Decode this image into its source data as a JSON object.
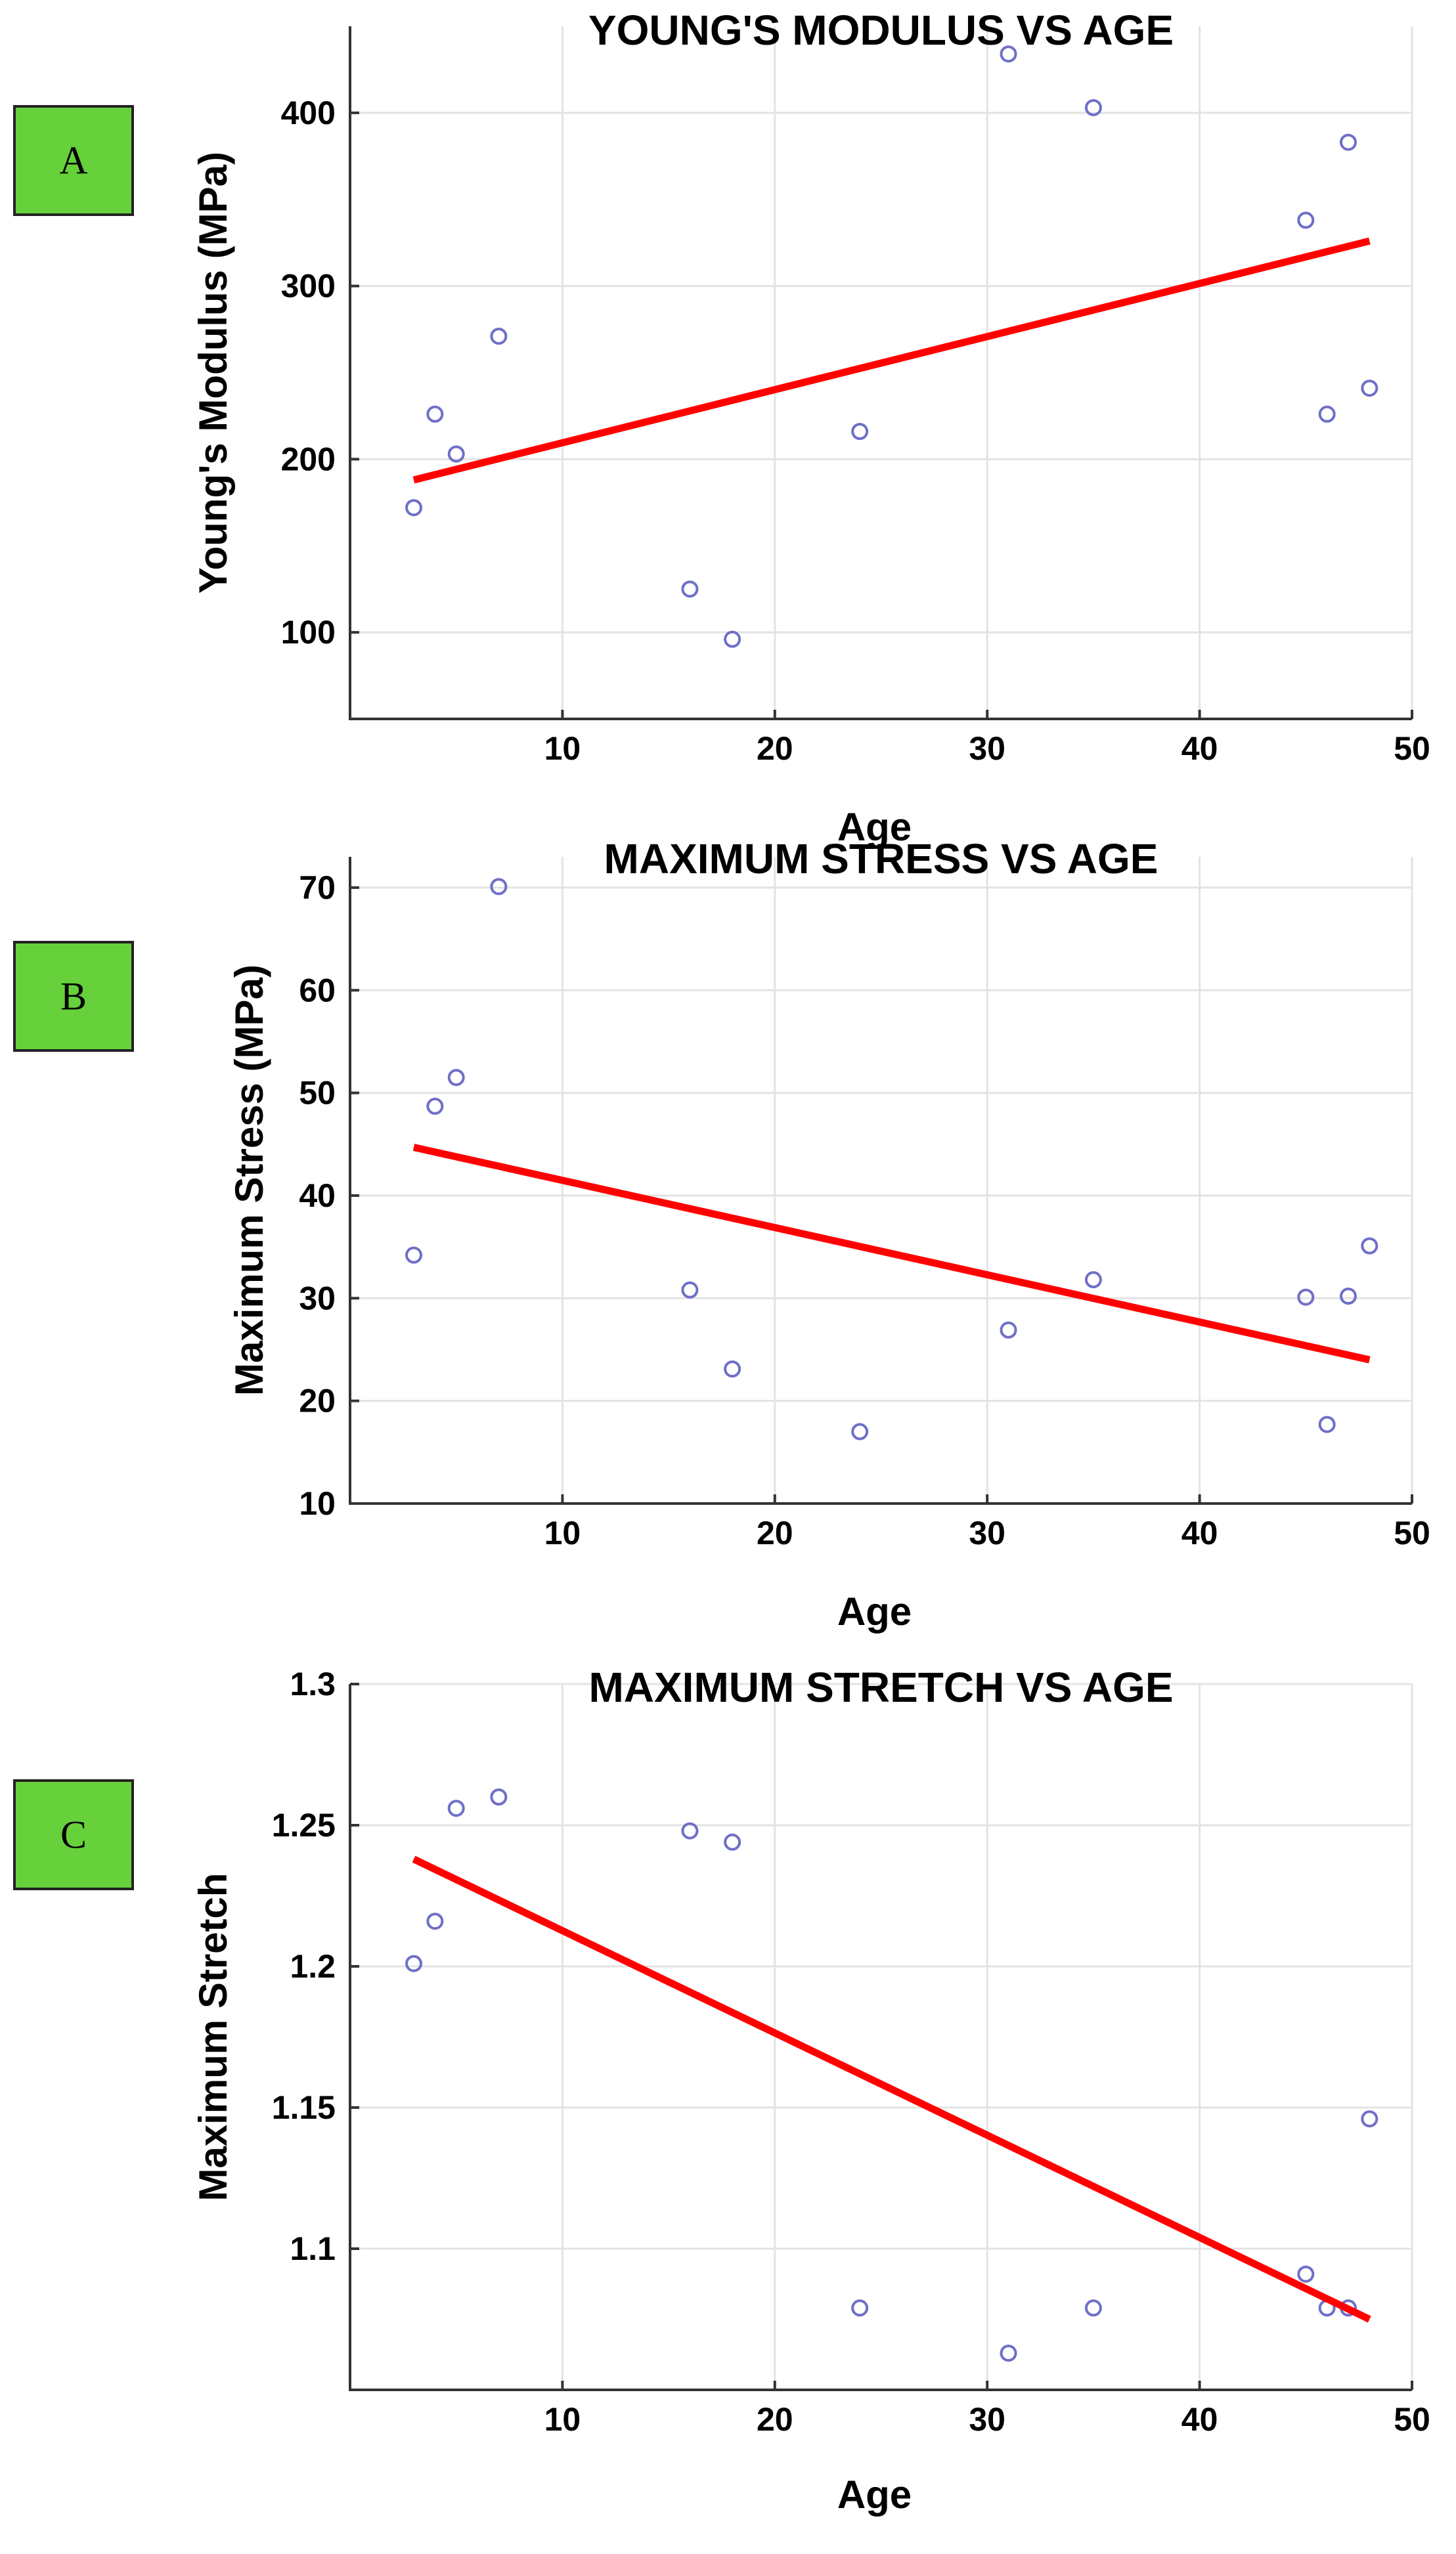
{
  "chart_data": [
    {
      "type": "scatter",
      "panel_label": "A",
      "title": "YOUNG'S MODULUS VS AGE",
      "xlabel": "Age",
      "ylabel": "Young's Modulus (MPa)",
      "xlim": [
        0,
        50
      ],
      "ylim": [
        50,
        450
      ],
      "xticks": [
        10,
        20,
        30,
        40,
        50
      ],
      "yticks": [
        100,
        200,
        300,
        400
      ],
      "ytick_labels": [
        "100",
        "200",
        "300",
        "400"
      ],
      "grid": true,
      "points": [
        {
          "x": 3,
          "y": 172
        },
        {
          "x": 4,
          "y": 226
        },
        {
          "x": 5,
          "y": 203
        },
        {
          "x": 7,
          "y": 271
        },
        {
          "x": 16,
          "y": 125
        },
        {
          "x": 18,
          "y": 96
        },
        {
          "x": 24,
          "y": 216
        },
        {
          "x": 31,
          "y": 434
        },
        {
          "x": 35,
          "y": 403
        },
        {
          "x": 45,
          "y": 338
        },
        {
          "x": 46,
          "y": 226
        },
        {
          "x": 47,
          "y": 383
        },
        {
          "x": 48,
          "y": 241
        }
      ],
      "fit_line": {
        "x": [
          3,
          48
        ],
        "y": [
          188,
          326
        ]
      }
    },
    {
      "type": "scatter",
      "panel_label": "B",
      "title": "MAXIMUM STRESS VS AGE",
      "xlabel": "Age",
      "ylabel": "Maximum Stress (MPa)",
      "xlim": [
        0,
        50
      ],
      "ylim": [
        10,
        73
      ],
      "xticks": [
        10,
        20,
        30,
        40,
        50
      ],
      "yticks": [
        10,
        20,
        30,
        40,
        50,
        60,
        70
      ],
      "ytick_labels": [
        "10",
        "20",
        "30",
        "40",
        "50",
        "60",
        "70"
      ],
      "grid": true,
      "points": [
        {
          "x": 3,
          "y": 34.2
        },
        {
          "x": 4,
          "y": 48.7
        },
        {
          "x": 5,
          "y": 51.5
        },
        {
          "x": 7,
          "y": 70.1
        },
        {
          "x": 16,
          "y": 30.8
        },
        {
          "x": 18,
          "y": 23.1
        },
        {
          "x": 24,
          "y": 17.0
        },
        {
          "x": 31,
          "y": 26.9
        },
        {
          "x": 35,
          "y": 31.8
        },
        {
          "x": 45,
          "y": 30.1
        },
        {
          "x": 46,
          "y": 17.7
        },
        {
          "x": 47,
          "y": 30.2
        },
        {
          "x": 48,
          "y": 35.1
        }
      ],
      "fit_line": {
        "x": [
          3,
          48
        ],
        "y": [
          44.7,
          24.0
        ]
      }
    },
    {
      "type": "scatter",
      "panel_label": "C",
      "title": "MAXIMUM STRETCH VS AGE",
      "xlabel": "Age",
      "ylabel": "Maximum Stretch",
      "xlim": [
        0,
        50
      ],
      "ylim": [
        1.05,
        1.3
      ],
      "xticks": [
        10,
        20,
        30,
        40,
        50
      ],
      "yticks": [
        1.1,
        1.15,
        1.2,
        1.25,
        1.3
      ],
      "ytick_labels": [
        "1.1",
        "1.15",
        "1.2",
        "1.25",
        "1.3"
      ],
      "grid": true,
      "points": [
        {
          "x": 3,
          "y": 1.201
        },
        {
          "x": 4,
          "y": 1.216
        },
        {
          "x": 5,
          "y": 1.256
        },
        {
          "x": 7,
          "y": 1.26
        },
        {
          "x": 16,
          "y": 1.248
        },
        {
          "x": 18,
          "y": 1.244
        },
        {
          "x": 24,
          "y": 1.079
        },
        {
          "x": 31,
          "y": 1.063
        },
        {
          "x": 35,
          "y": 1.079
        },
        {
          "x": 45,
          "y": 1.091
        },
        {
          "x": 46,
          "y": 1.079
        },
        {
          "x": 47,
          "y": 1.079
        },
        {
          "x": 48,
          "y": 1.146
        }
      ],
      "fit_line": {
        "x": [
          3,
          48
        ],
        "y": [
          1.238,
          1.075
        ]
      }
    }
  ]
}
